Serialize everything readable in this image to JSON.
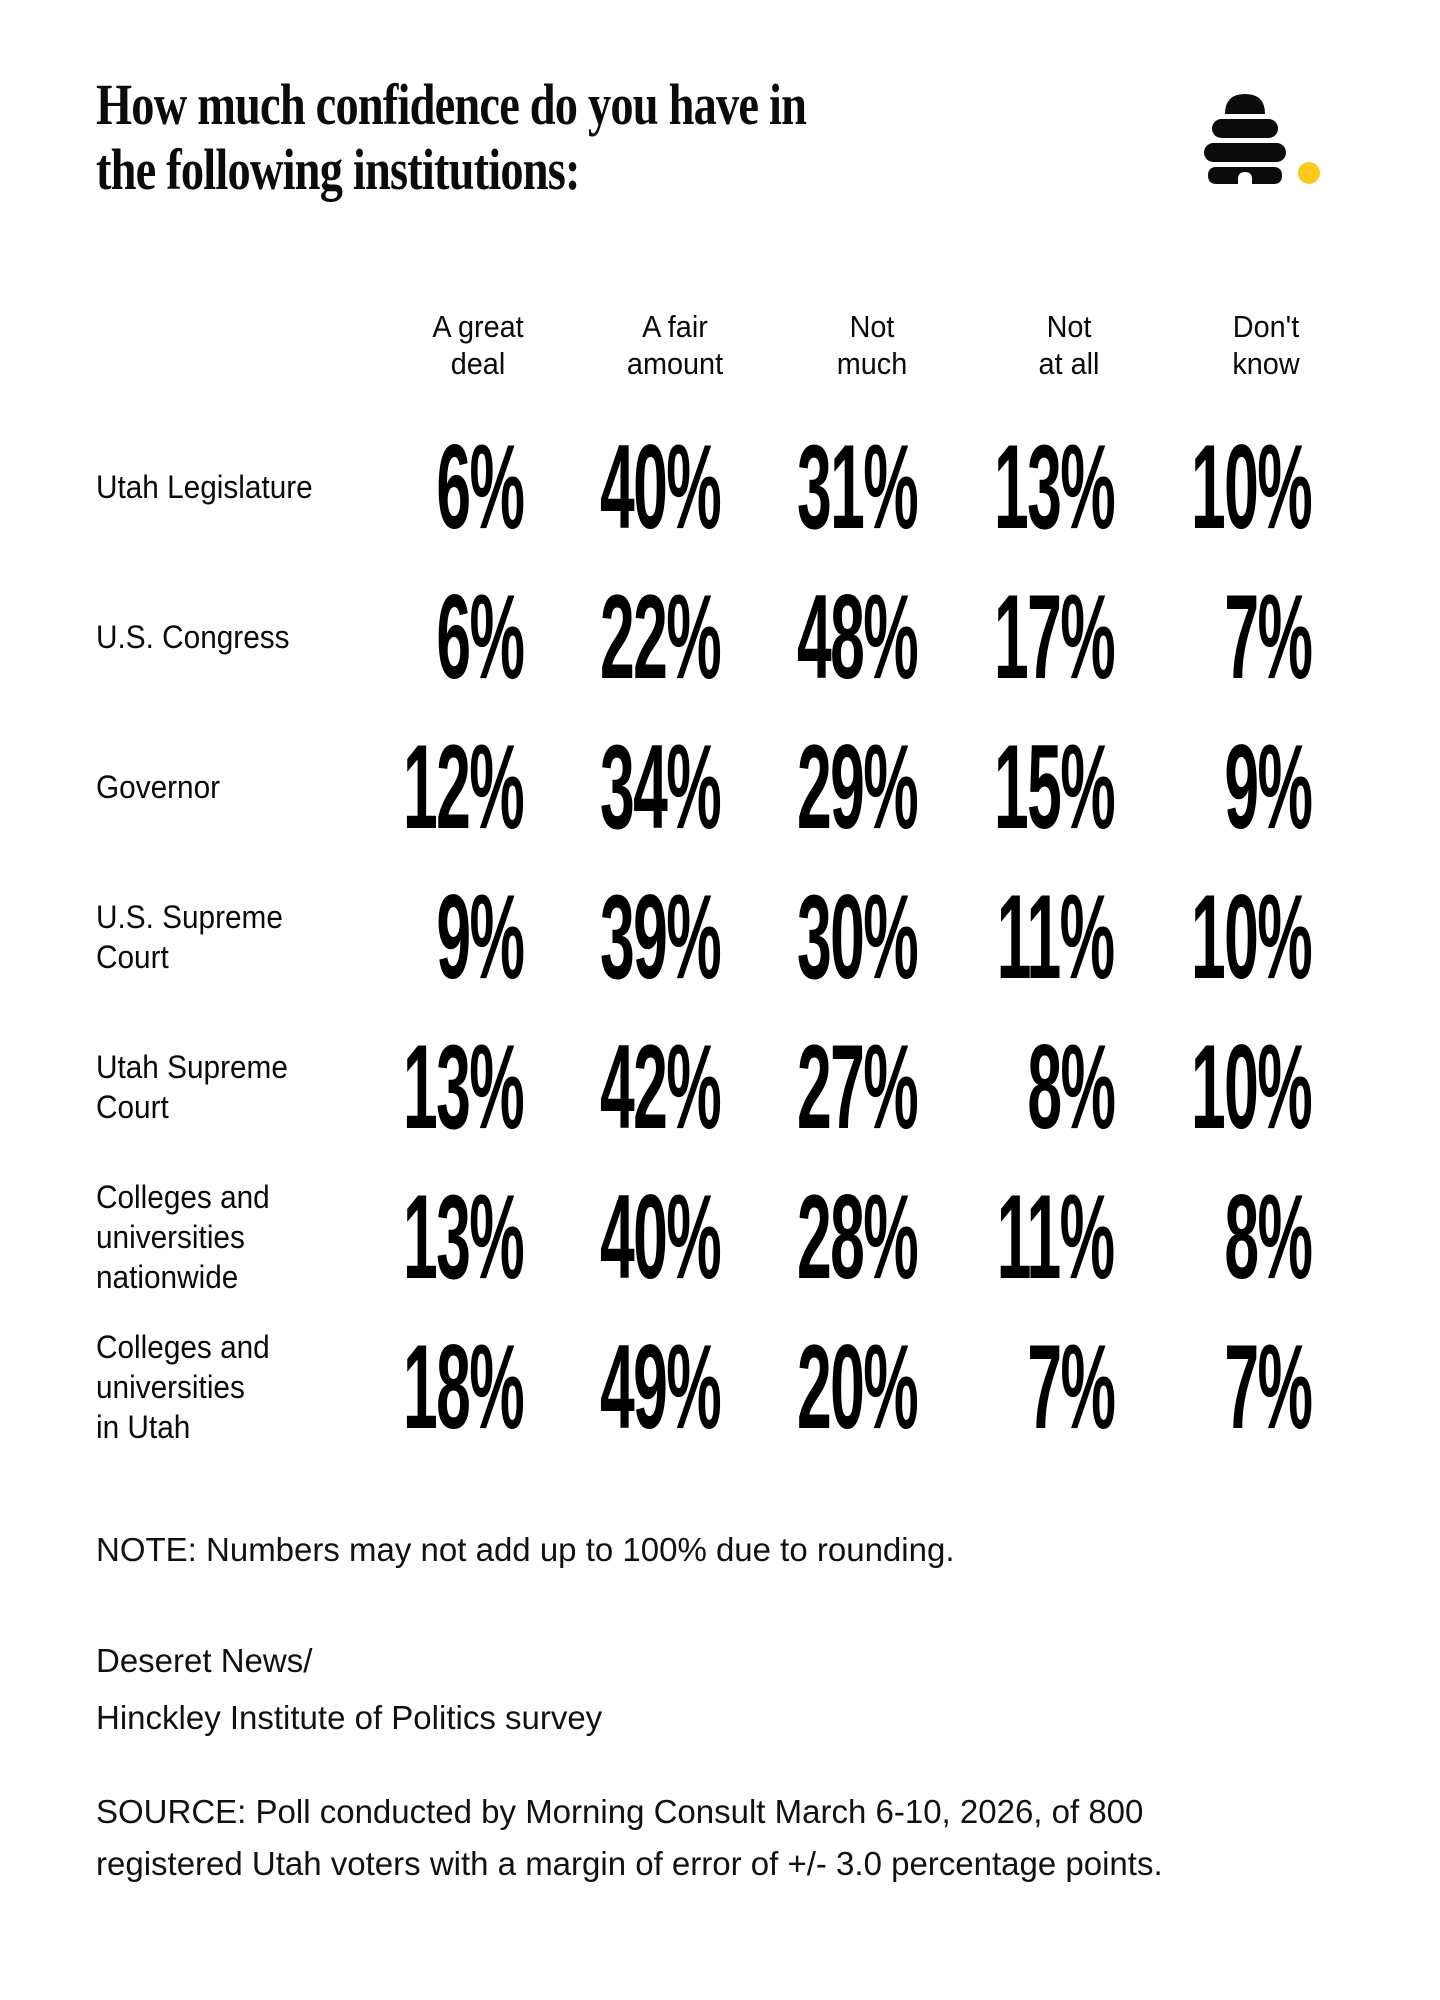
{
  "header": {
    "title_line1": "How much confidence do you have in",
    "title_line2": "the following institutions:",
    "logo": {
      "name": "deseret-news-beehive",
      "hive_color": "#0b0b0b",
      "dot_color": "#FFC91C"
    }
  },
  "table": {
    "headers": [
      {
        "line1": "A great",
        "line2": "deal"
      },
      {
        "line1": "A fair",
        "line2": "amount"
      },
      {
        "line1": "Not",
        "line2": "much"
      },
      {
        "line1": "Not",
        "line2": "at all"
      },
      {
        "line1": "Don't",
        "line2": "know"
      }
    ],
    "row_label_lines": [
      [
        "Utah Legislature"
      ],
      [
        "U.S. Congress"
      ],
      [
        "Governor"
      ],
      [
        "U.S. Supreme",
        "Court"
      ],
      [
        "Utah Supreme",
        "Court"
      ],
      [
        "Colleges and",
        "universities",
        "nationwide"
      ],
      [
        "Colleges and",
        "universities",
        "in Utah"
      ]
    ]
  },
  "chart_data": {
    "type": "table",
    "title": "How much confidence do you have in the following institutions:",
    "unit": "percent",
    "columns": [
      "A great deal",
      "A fair amount",
      "Not much",
      "Not at all",
      "Don't know"
    ],
    "rows": [
      {
        "label": "Utah Legislature",
        "values": [
          6,
          40,
          31,
          13,
          10
        ]
      },
      {
        "label": "U.S. Congress",
        "values": [
          6,
          22,
          48,
          17,
          7
        ]
      },
      {
        "label": "Governor",
        "values": [
          12,
          34,
          29,
          15,
          9
        ]
      },
      {
        "label": "U.S. Supreme Court",
        "values": [
          9,
          39,
          30,
          11,
          10
        ]
      },
      {
        "label": "Utah Supreme Court",
        "values": [
          13,
          42,
          27,
          8,
          10
        ]
      },
      {
        "label": "Colleges and universities nationwide",
        "values": [
          13,
          40,
          28,
          11,
          8
        ]
      },
      {
        "label": "Colleges and universities in Utah",
        "values": [
          18,
          49,
          20,
          7,
          7
        ]
      }
    ]
  },
  "footer": {
    "note": "NOTE: Numbers may not add up to 100% due to rounding.",
    "credit_line1": "Deseret News/",
    "credit_line2": "Hinckley Institute of Politics survey",
    "source_line1": "SOURCE: Poll conducted by Morning Consult March 6-10, 2026, of 800",
    "source_line2": "registered Utah voters with a margin of error of +/- 3.0 percentage points."
  }
}
